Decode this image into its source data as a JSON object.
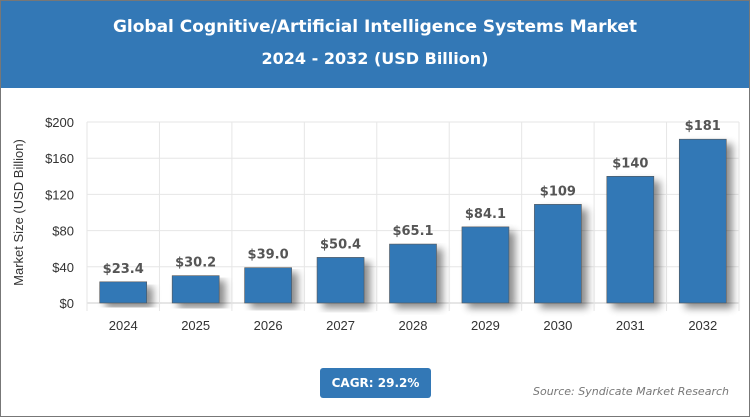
{
  "header": {
    "title_line1": "Global Cognitive/Artificial Intelligence Systems Market",
    "title_line2": "2024 - 2032 (USD Billion)"
  },
  "cagr_label": "CAGR: 29.2%",
  "source": "Source: Syndicate Market Research",
  "colors": {
    "bar": "#3378b6",
    "header": "#3378b6"
  },
  "chart_data": {
    "type": "bar",
    "categories": [
      "2024",
      "2025",
      "2026",
      "2027",
      "2028",
      "2029",
      "2030",
      "2031",
      "2032"
    ],
    "values": [
      23.4,
      30.2,
      39.0,
      50.4,
      65.1,
      84.1,
      109,
      140,
      181
    ],
    "data_labels": [
      "$23.4",
      "$30.2",
      "$39.0",
      "$50.4",
      "$65.1",
      "$84.1",
      "$109",
      "$140",
      "$181"
    ],
    "ylabel": "Market Size (USD Billion)",
    "xlabel": "",
    "ylim": [
      0,
      200
    ],
    "yticks": [
      0,
      40,
      80,
      120,
      160,
      200
    ],
    "ytick_labels": [
      "$0",
      "$40",
      "$80",
      "$120",
      "$160",
      "$200"
    ],
    "grid": true,
    "legend": "none"
  }
}
